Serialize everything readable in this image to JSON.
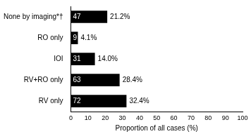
{
  "chart_data": {
    "type": "bar",
    "orientation": "horizontal",
    "x_label": "Proportion of all cases (%)",
    "categories": [
      "None by imaging*†",
      "RO only",
      "IOI",
      "RV+RO only",
      "RV only"
    ],
    "values": [
      21.2,
      4.1,
      14.0,
      28.4,
      32.4
    ],
    "value_labels": [
      "21.2%",
      "4.1%",
      "14.0%",
      "28.4%",
      "32.4%"
    ],
    "counts": [
      47,
      9,
      31,
      63,
      72
    ],
    "color": "#000000",
    "xlim": [
      0,
      100
    ],
    "xticks": [
      0,
      10,
      20,
      30,
      40,
      50,
      60,
      70,
      80,
      90,
      100
    ],
    "grid": false,
    "data_labels": true
  }
}
